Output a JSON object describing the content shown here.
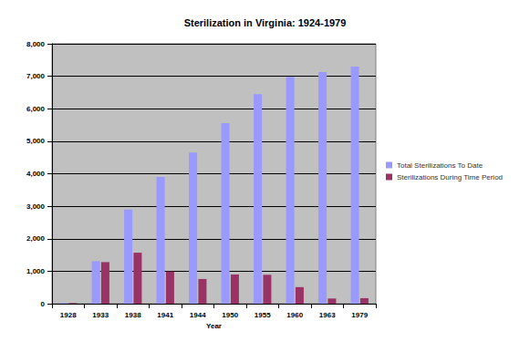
{
  "chart_data": {
    "type": "bar",
    "title": "Sterilization in Virginia: 1924-1979",
    "x_label": "Year",
    "categories": [
      "1928",
      "1933",
      "1938",
      "1941",
      "1944",
      "1950",
      "1955",
      "1960",
      "1963",
      "1979"
    ],
    "series": [
      {
        "name": "Total Sterilizations To Date",
        "color": "#9999ff",
        "values": [
          20,
          1310,
          2900,
          3900,
          4650,
          5560,
          6450,
          6980,
          7130,
          7300
        ]
      },
      {
        "name": "Sterilizations During Time Period",
        "color": "#993366",
        "values": [
          20,
          1280,
          1570,
          990,
          760,
          900,
          890,
          510,
          160,
          170
        ]
      }
    ],
    "ylim": [
      0,
      8000
    ],
    "yticks": [
      0,
      1000,
      2000,
      3000,
      4000,
      5000,
      6000,
      7000,
      8000
    ],
    "grid": true,
    "legend": "right"
  }
}
